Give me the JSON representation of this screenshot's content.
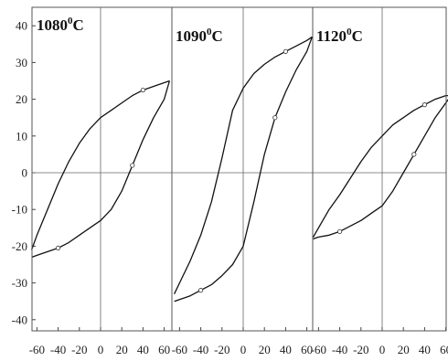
{
  "chart_data": {
    "type": "line",
    "ylim": [
      -45,
      42
    ],
    "xlim": [
      -78,
      70
    ],
    "y_ticks": [
      "40",
      "30",
      "20",
      "10",
      "0",
      "-10",
      "-20",
      "-30",
      "-40"
    ],
    "y_tick_values": [
      40,
      30,
      20,
      10,
      0,
      -10,
      -20,
      -30,
      -40
    ],
    "x_tick_values": [
      -60,
      -40,
      -20,
      0,
      20,
      40,
      60
    ],
    "grid": false,
    "panels": [
      {
        "title_main": "1080",
        "title_sup": "0",
        "title_unit": "C",
        "x_tick_labels": [
          "-60",
          "-40",
          "-20",
          "0",
          "20",
          "40",
          "60"
        ],
        "upper_branch": {
          "x": [
            -65,
            -60,
            -50,
            -40,
            -30,
            -20,
            -10,
            0,
            10,
            20,
            30,
            40,
            50,
            60,
            65
          ],
          "y": [
            -21,
            -17,
            -10,
            -3,
            3,
            8,
            12,
            15,
            17,
            19,
            21,
            22.5,
            23.5,
            24.5,
            25
          ]
        },
        "lower_branch": {
          "x": [
            -65,
            -60,
            -50,
            -40,
            -30,
            -20,
            -10,
            0,
            10,
            20,
            30,
            40,
            50,
            60,
            65
          ],
          "y": [
            -23,
            -22.5,
            -21.5,
            -20.5,
            -19,
            -17,
            -15,
            -13,
            -10,
            -5,
            2,
            9,
            15,
            20,
            25
          ]
        }
      },
      {
        "title_main": "1090",
        "title_sup": "0",
        "title_unit": "C",
        "x_tick_labels": [
          "-60",
          "-40",
          "-20",
          "0",
          "20",
          "40",
          "60"
        ],
        "upper_branch": {
          "x": [
            -65,
            -60,
            -50,
            -40,
            -30,
            -20,
            -10,
            0,
            10,
            20,
            30,
            40,
            50,
            60,
            65
          ],
          "y": [
            -33,
            -30,
            -24,
            -17,
            -8,
            4,
            17,
            23,
            27,
            29.5,
            31.5,
            33,
            34.5,
            36,
            37
          ]
        },
        "lower_branch": {
          "x": [
            -65,
            -60,
            -50,
            -40,
            -30,
            -20,
            -10,
            0,
            10,
            20,
            30,
            40,
            50,
            60,
            65
          ],
          "y": [
            -35,
            -34.5,
            -33.5,
            -32,
            -30.5,
            -28,
            -25,
            -20,
            -8,
            5,
            15,
            22,
            28,
            33,
            37
          ]
        }
      },
      {
        "title_main": "1120",
        "title_sup": "0",
        "title_unit": "C",
        "x_tick_labels": [
          "-60",
          "-40",
          "-20",
          "0",
          "20",
          "40",
          "60"
        ],
        "upper_branch": {
          "x": [
            -65,
            -60,
            -50,
            -40,
            -30,
            -20,
            -10,
            0,
            10,
            20,
            30,
            40,
            50,
            60,
            65
          ],
          "y": [
            -17.5,
            -15,
            -10,
            -6,
            -1.5,
            3,
            7,
            10,
            13,
            15,
            17,
            18.5,
            20,
            21,
            21
          ]
        },
        "lower_branch": {
          "x": [
            -65,
            -60,
            -50,
            -40,
            -30,
            -20,
            -10,
            0,
            10,
            20,
            30,
            40,
            50,
            60,
            65
          ],
          "y": [
            -18,
            -17.5,
            -17,
            -16,
            -14.5,
            -13,
            -11,
            -9,
            -5,
            0,
            5,
            10,
            15,
            19,
            21
          ]
        }
      }
    ]
  }
}
